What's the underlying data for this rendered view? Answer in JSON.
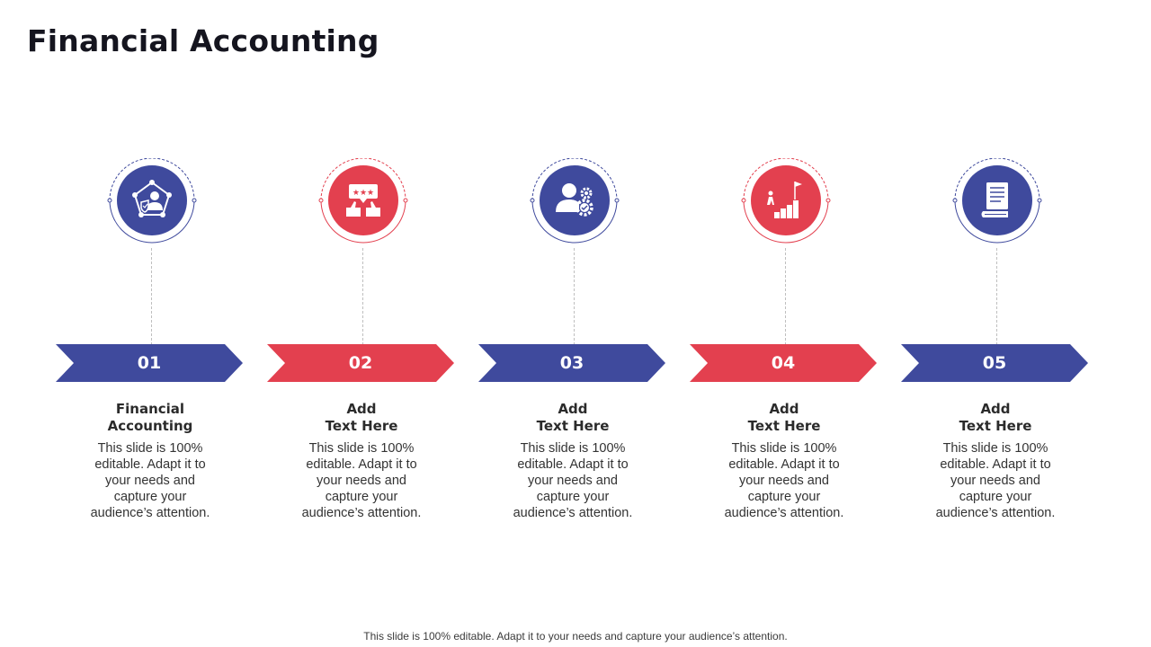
{
  "slide": {
    "title": "Financial Accounting",
    "footer": "This slide is 100% editable. Adapt it to your needs and capture your audience’s attention."
  },
  "colors": {
    "blue": "#3f4a9d",
    "red": "#e3404f"
  },
  "steps": [
    {
      "number": "01",
      "color": "blue",
      "icon": "user-shield-pentagon-icon",
      "title_lines": [
        "Financial",
        "Accounting"
      ],
      "desc_lines": [
        "This slide is 100%",
        "editable. Adapt it to",
        "your needs and",
        "capture your",
        "audience’s attention."
      ]
    },
    {
      "number": "02",
      "color": "red",
      "icon": "thumbs-up-rating-icon",
      "title_lines": [
        "Add",
        "Text Here"
      ],
      "desc_lines": [
        "This slide is 100%",
        "editable. Adapt it to",
        "your needs and",
        "capture your",
        "audience’s attention."
      ]
    },
    {
      "number": "03",
      "color": "blue",
      "icon": "user-gears-icon",
      "title_lines": [
        "Add",
        "Text Here"
      ],
      "desc_lines": [
        "This slide is 100%",
        "editable. Adapt it to",
        "your needs and",
        "capture your",
        "audience’s attention."
      ]
    },
    {
      "number": "04",
      "color": "red",
      "icon": "stairs-flag-icon",
      "title_lines": [
        "Add",
        "Text Here"
      ],
      "desc_lines": [
        "This slide is 100%",
        "editable. Adapt it to",
        "your needs and",
        "capture your",
        "audience’s attention."
      ]
    },
    {
      "number": "05",
      "color": "blue",
      "icon": "document-icon",
      "title_lines": [
        "Add",
        "Text Here"
      ],
      "desc_lines": [
        "This slide is 100%",
        "editable. Adapt it to",
        "your needs and",
        "capture your",
        "audience’s attention."
      ]
    }
  ]
}
